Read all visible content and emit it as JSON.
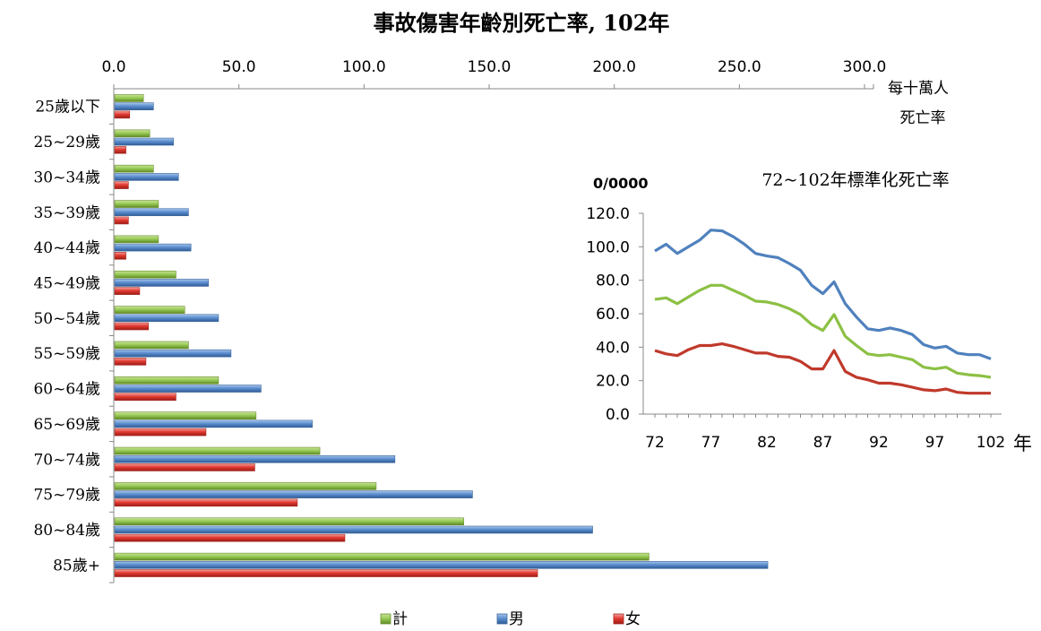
{
  "chart_data": [
    {
      "type": "bar",
      "orientation": "horizontal",
      "title": "事故傷害年齡別死亡率, 102年",
      "unit_label_line1": "每十萬人",
      "unit_label_line2": "死亡率",
      "xlim": [
        0,
        300
      ],
      "xticks": [
        "0.0",
        "50.0",
        "100.0",
        "150.0",
        "200.0",
        "250.0",
        "300.0"
      ],
      "categories": [
        "25歲以下",
        "25~29歲",
        "30~34歲",
        "35~39歲",
        "40~44歲",
        "45~49歲",
        "50~54歲",
        "55~59歲",
        "60~64歲",
        "65~69歲",
        "70~74歲",
        "75~79歲",
        "80~84歲",
        "85歲+"
      ],
      "series": [
        {
          "name": "計",
          "color": "#8cc044",
          "values": [
            11.5,
            14.0,
            15.5,
            17.5,
            17.5,
            24.5,
            28.0,
            29.5,
            41.5,
            56.5,
            82.0,
            104.5,
            139.5,
            213.5
          ]
        },
        {
          "name": "男",
          "color": "#4f81bd",
          "values": [
            15.5,
            23.5,
            25.5,
            29.5,
            30.5,
            37.5,
            41.5,
            46.5,
            58.5,
            79.0,
            112.0,
            143.0,
            191.0,
            261.0
          ]
        },
        {
          "name": "女",
          "color": "#e0322b",
          "values": [
            6.0,
            4.5,
            5.5,
            5.5,
            4.5,
            10.0,
            13.5,
            12.5,
            24.5,
            36.5,
            56.0,
            73.0,
            92.0,
            169.0
          ]
        }
      ],
      "legend": "bottom",
      "grid": false
    },
    {
      "type": "line",
      "title": "72~102年標準化死亡率",
      "ylabel": "0/0000",
      "xlabel": "年",
      "ylim": [
        0,
        120
      ],
      "yticks": [
        "0.0",
        "20.0",
        "40.0",
        "60.0",
        "80.0",
        "100.0",
        "120.0"
      ],
      "xlim": [
        72,
        102
      ],
      "xticks": [
        72,
        77,
        82,
        87,
        92,
        97,
        102
      ],
      "x": [
        72,
        73,
        74,
        75,
        76,
        77,
        78,
        79,
        80,
        81,
        82,
        83,
        84,
        85,
        86,
        87,
        88,
        89,
        90,
        91,
        92,
        93,
        94,
        95,
        96,
        97,
        98,
        99,
        100,
        101,
        102
      ],
      "series": [
        {
          "color": "#4f81bd",
          "values": [
            97.5,
            101.5,
            96.0,
            100.0,
            104.0,
            110.0,
            109.5,
            106.0,
            101.5,
            96.0,
            94.5,
            93.5,
            90.0,
            86.0,
            77.0,
            72.0,
            79.0,
            66.0,
            58.0,
            51.0,
            50.0,
            51.5,
            50.0,
            47.5,
            41.5,
            39.5,
            40.5,
            36.5,
            35.5,
            35.5,
            33.0
          ]
        },
        {
          "color": "#8cc044",
          "values": [
            68.5,
            69.5,
            66.0,
            70.0,
            74.0,
            77.0,
            77.0,
            74.0,
            71.0,
            67.5,
            67.0,
            65.5,
            63.0,
            59.5,
            53.5,
            50.0,
            59.5,
            46.5,
            41.0,
            36.0,
            35.0,
            35.5,
            34.0,
            32.5,
            28.0,
            27.0,
            28.0,
            24.5,
            23.5,
            23.0,
            22.0
          ]
        },
        {
          "color": "#c0392b",
          "values": [
            38.0,
            36.0,
            35.0,
            38.5,
            41.0,
            41.0,
            42.0,
            40.5,
            38.5,
            36.5,
            36.5,
            34.5,
            34.0,
            31.5,
            27.0,
            27.0,
            38.0,
            25.5,
            22.0,
            20.5,
            18.5,
            18.5,
            17.5,
            16.0,
            14.5,
            14.0,
            15.0,
            13.0,
            12.5,
            12.5,
            12.5
          ]
        }
      ],
      "legend": "none",
      "grid": false
    }
  ]
}
